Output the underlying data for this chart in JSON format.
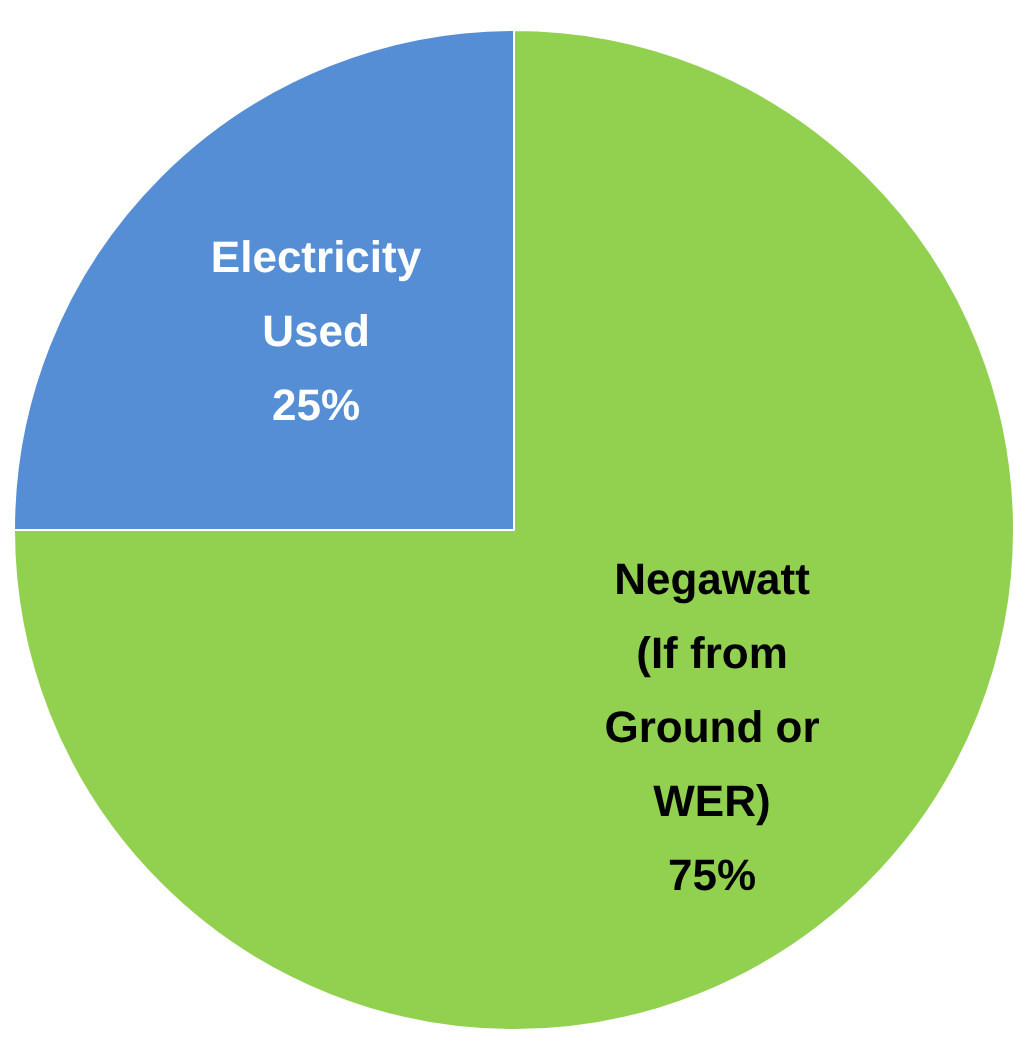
{
  "chart_data": {
    "type": "pie",
    "categories": [
      "Negawatt (If from Ground or WER)",
      "Electricity Used"
    ],
    "values": [
      75,
      25
    ],
    "colors": [
      "#92d050",
      "#558ed5"
    ],
    "value_labels": [
      "75%",
      "25%"
    ]
  }
}
